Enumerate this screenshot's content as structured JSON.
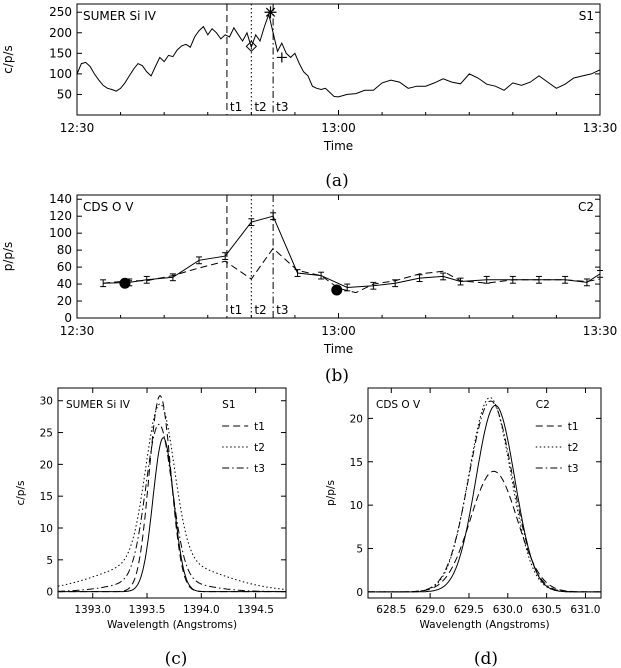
{
  "chart_data": [
    {
      "panel": "a",
      "type": "line",
      "caption": "(a)",
      "title": "SUMER Si IV",
      "corner_label": "S1",
      "xlabel": "Time",
      "ylabel": "c/p/s",
      "xlim": [
        0,
        60
      ],
      "ylim": [
        0,
        270
      ],
      "xticks": [
        0,
        30,
        60
      ],
      "xtick_labels": [
        "12:30",
        "13:00",
        "13:30"
      ],
      "yticks": [
        50,
        100,
        150,
        200,
        250
      ],
      "ytick_labels": [
        "50",
        "100",
        "150",
        "200",
        "250"
      ],
      "markers": [
        {
          "label": "t1",
          "x": 17.2
        },
        {
          "label": "t2",
          "x": 20.0
        },
        {
          "label": "t3",
          "x": 22.5
        }
      ],
      "symbols": [
        {
          "shape": "diamond",
          "x": 20.0,
          "y": 167
        },
        {
          "shape": "asterisk",
          "x": 22.2,
          "y": 250
        },
        {
          "shape": "plus",
          "x": 23.5,
          "y": 140
        }
      ],
      "series": [
        {
          "x": [
            0,
            0.5,
            1,
            1.5,
            2,
            2.5,
            3,
            3.5,
            4,
            4.5,
            5,
            5.5,
            6,
            6.5,
            7,
            7.5,
            8,
            8.5,
            9,
            9.5,
            10,
            10.5,
            11,
            11.5,
            12,
            12.5,
            13,
            13.5,
            14,
            14.5,
            15,
            15.5,
            16,
            16.5,
            17,
            17.5,
            18,
            18.5,
            19,
            19.5,
            20,
            20.5,
            21,
            21.5,
            22,
            22.5,
            23,
            23.5,
            24,
            24.5,
            25,
            25.5,
            26,
            26.5,
            27,
            27.5,
            28,
            28.5,
            29,
            29.5,
            30,
            31,
            32,
            33,
            34,
            35,
            36,
            37,
            38,
            39,
            40,
            41,
            42,
            43,
            44,
            45,
            46,
            47,
            48,
            49,
            50,
            51,
            52,
            53,
            54,
            55,
            56,
            57,
            58,
            59,
            60
          ],
          "y": [
            100,
            125,
            128,
            118,
            100,
            85,
            72,
            65,
            62,
            58,
            65,
            78,
            95,
            112,
            125,
            120,
            105,
            95,
            118,
            140,
            130,
            145,
            142,
            158,
            168,
            172,
            165,
            190,
            205,
            215,
            195,
            210,
            200,
            185,
            195,
            190,
            212,
            195,
            180,
            200,
            165,
            195,
            180,
            215,
            245,
            200,
            155,
            175,
            150,
            140,
            150,
            125,
            105,
            95,
            70,
            65,
            62,
            65,
            55,
            45,
            44,
            50,
            52,
            60,
            60,
            78,
            85,
            80,
            65,
            70,
            70,
            78,
            88,
            80,
            76,
            100,
            90,
            75,
            70,
            60,
            78,
            72,
            80,
            95,
            80,
            65,
            75,
            90,
            95,
            100,
            110
          ]
        }
      ]
    },
    {
      "panel": "b",
      "type": "line",
      "caption": "(b)",
      "title": "CDS O V",
      "corner_label": "C2",
      "xlabel": "Time",
      "ylabel": "p/p/s",
      "xlim": [
        0,
        60
      ],
      "ylim": [
        0,
        145
      ],
      "xticks": [
        0,
        30,
        60
      ],
      "xtick_labels": [
        "12:30",
        "13:00",
        "13:30"
      ],
      "yticks": [
        0,
        20,
        40,
        60,
        80,
        100,
        120,
        140
      ],
      "ytick_labels": [
        "0",
        "20",
        "40",
        "60",
        "80",
        "100",
        "120",
        "140"
      ],
      "markers": [
        {
          "label": "t1",
          "x": 17.2
        },
        {
          "label": "t2",
          "x": 20.0
        },
        {
          "label": "t3",
          "x": 22.5
        }
      ],
      "filled_points": [
        {
          "x": 5.5,
          "y": 41
        },
        {
          "x": 29.8,
          "y": 33
        }
      ],
      "series": [
        {
          "style": "solid",
          "errorbars": true,
          "error": 4,
          "x": [
            3,
            6,
            8,
            11,
            14,
            17,
            20,
            22.5,
            25.3,
            28,
            31,
            34,
            36.5,
            39.3,
            42,
            44,
            47,
            50,
            53,
            56,
            58.5,
            60
          ],
          "y": [
            41,
            42,
            45,
            48,
            68,
            73,
            113,
            120,
            53,
            50,
            36,
            38,
            41,
            47,
            49,
            43,
            45,
            45,
            45,
            45,
            42,
            52
          ]
        },
        {
          "style": "dashed",
          "x": [
            3,
            6,
            8,
            11,
            14,
            17,
            20,
            22.5,
            25.3,
            28,
            30,
            32,
            34,
            36.5,
            39.3,
            42,
            44,
            47,
            50,
            53,
            56,
            58.5,
            60
          ],
          "y": [
            41,
            44,
            44,
            50,
            59,
            67,
            46,
            82,
            56,
            50,
            35,
            30,
            40,
            44,
            52,
            55,
            44,
            41,
            45,
            45,
            45,
            43,
            46
          ]
        }
      ]
    },
    {
      "panel": "c",
      "type": "line",
      "caption": "(c)",
      "title": "SUMER Si IV",
      "corner_label": "S1",
      "xlabel": "Wavelength (Angstroms)",
      "ylabel": "c/p/s",
      "xlim": [
        1392.68,
        1394.78
      ],
      "ylim": [
        -1,
        32
      ],
      "xticks": [
        1393.0,
        1393.5,
        1394.0,
        1394.5
      ],
      "xtick_labels": [
        "1393.0",
        "1393.5",
        "1394.0",
        "1394.5"
      ],
      "yticks": [
        0,
        5,
        10,
        15,
        20,
        25,
        30
      ],
      "ytick_labels": [
        "0",
        "5",
        "10",
        "15",
        "20",
        "25",
        "30"
      ],
      "legend": [
        "t1",
        "t2",
        "t3"
      ],
      "series": [
        {
          "style": "solid",
          "center": 1393.65,
          "peak": 24.2,
          "sigma": 0.095
        },
        {
          "name": "t1",
          "style": "dashed",
          "center": 1393.62,
          "peak": 30.8,
          "sigma": 0.1
        },
        {
          "name": "t2",
          "style": "dotted",
          "center": 1393.62,
          "peak": 24.5,
          "sigma": 0.13,
          "wing": 5.0,
          "wing_width": 0.5
        },
        {
          "name": "t3",
          "style": "dashdot",
          "center": 1393.61,
          "peak": 24.3,
          "sigma": 0.12,
          "wing": 2.0,
          "wing_width": 0.35
        }
      ]
    },
    {
      "panel": "d",
      "type": "line",
      "caption": "(d)",
      "title": "CDS O V",
      "corner_label": "C2",
      "xlabel": "Wavelength (Angstroms)",
      "ylabel": "p/p/s",
      "xlim": [
        628.2,
        631.2
      ],
      "ylim": [
        -0.7,
        23.5
      ],
      "xticks": [
        628.5,
        629.0,
        629.5,
        630.0,
        630.5,
        631.0
      ],
      "xtick_labels": [
        "628.5",
        "629.0",
        "629.5",
        "630.0",
        "630.5",
        "631.0"
      ],
      "yticks": [
        0,
        5,
        10,
        15,
        20
      ],
      "ytick_labels": [
        "0",
        "5",
        "10",
        "15",
        "20"
      ],
      "legend": [
        "t1",
        "t2",
        "t3"
      ],
      "series": [
        {
          "style": "solid",
          "center": 629.84,
          "peak": 21.5,
          "sigma": 0.25
        },
        {
          "name": "t1",
          "style": "dashed",
          "center": 629.82,
          "peak": 13.9,
          "sigma": 0.3
        },
        {
          "name": "t2",
          "style": "dotted",
          "center": 629.77,
          "peak": 22.4,
          "sigma": 0.27
        },
        {
          "name": "t3",
          "style": "dashdot",
          "center": 629.78,
          "peak": 22.0,
          "sigma": 0.28
        }
      ]
    }
  ]
}
